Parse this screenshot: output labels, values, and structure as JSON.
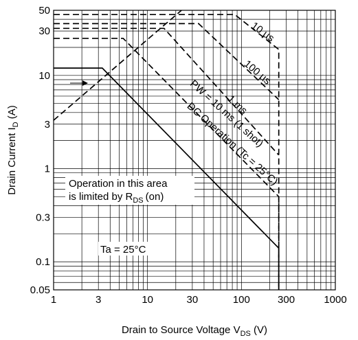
{
  "chart_data": {
    "type": "line",
    "title": "",
    "xlabel": "Drain to Source Voltage V",
    "xlabel_sub": "DS",
    "xlabel_unit": " (V)",
    "ylabel": "Drain Current I",
    "ylabel_sub": "D",
    "ylabel_unit": " (A)",
    "x_scale": "log",
    "y_scale": "log",
    "xlim": [
      1,
      1000
    ],
    "ylim": [
      0.05,
      50
    ],
    "grid": true,
    "x_ticks": [
      {
        "v": 1,
        "label": "1"
      },
      {
        "v": 3,
        "label": "3"
      },
      {
        "v": 10,
        "label": "10"
      },
      {
        "v": 30,
        "label": "30"
      },
      {
        "v": 100,
        "label": "100"
      },
      {
        "v": 300,
        "label": "300"
      },
      {
        "v": 1000,
        "label": "1000"
      }
    ],
    "y_ticks": [
      {
        "v": 0.05,
        "label": "0.05"
      },
      {
        "v": 0.1,
        "label": "0.1"
      },
      {
        "v": 0.3,
        "label": "0.3"
      },
      {
        "v": 1,
        "label": "1"
      },
      {
        "v": 3,
        "label": "3"
      },
      {
        "v": 10,
        "label": "10"
      },
      {
        "v": 30,
        "label": "30"
      },
      {
        "v": 50,
        "label": "50"
      }
    ],
    "series": [
      {
        "name": "DC Operation (Tc = 25°C)",
        "dash": false,
        "points": [
          [
            1,
            12
          ],
          [
            3.3,
            12
          ],
          [
            250,
            0.14
          ],
          [
            250,
            0.05
          ]
        ]
      },
      {
        "name": "PW = 10 ms (1 shot)",
        "dash": true,
        "points": [
          [
            1,
            25
          ],
          [
            5.5,
            25
          ],
          [
            250,
            0.5
          ],
          [
            250,
            0.05
          ]
        ]
      },
      {
        "name": "1 ms",
        "dash": true,
        "points": [
          [
            1,
            32
          ],
          [
            15,
            32
          ],
          [
            250,
            1.4
          ]
        ]
      },
      {
        "name": "100 µs",
        "dash": true,
        "points": [
          [
            1,
            36
          ],
          [
            35,
            36
          ],
          [
            250,
            5.5
          ]
        ]
      },
      {
        "name": "10 µs",
        "dash": true,
        "points": [
          [
            1,
            45
          ],
          [
            85,
            45
          ],
          [
            250,
            19
          ],
          [
            250,
            0.05
          ]
        ]
      },
      {
        "name": "",
        "dash": true,
        "points": [
          [
            1,
            3.3
          ],
          [
            23,
            50
          ]
        ]
      }
    ],
    "annotations": {
      "pw_10ms": "PW = 10 ms (1 shot)",
      "ms1": "1 ms",
      "us100": "100 µs",
      "us10": "10 µs",
      "dc_op": "DC Operation (Tc = 25°C)",
      "rds_line1": "Operation in this area",
      "rds_line2_pre": "is limited by R",
      "rds_line2_sub": "DS",
      "rds_line2_post": "(on)",
      "ta": "Ta = 25°C"
    }
  }
}
